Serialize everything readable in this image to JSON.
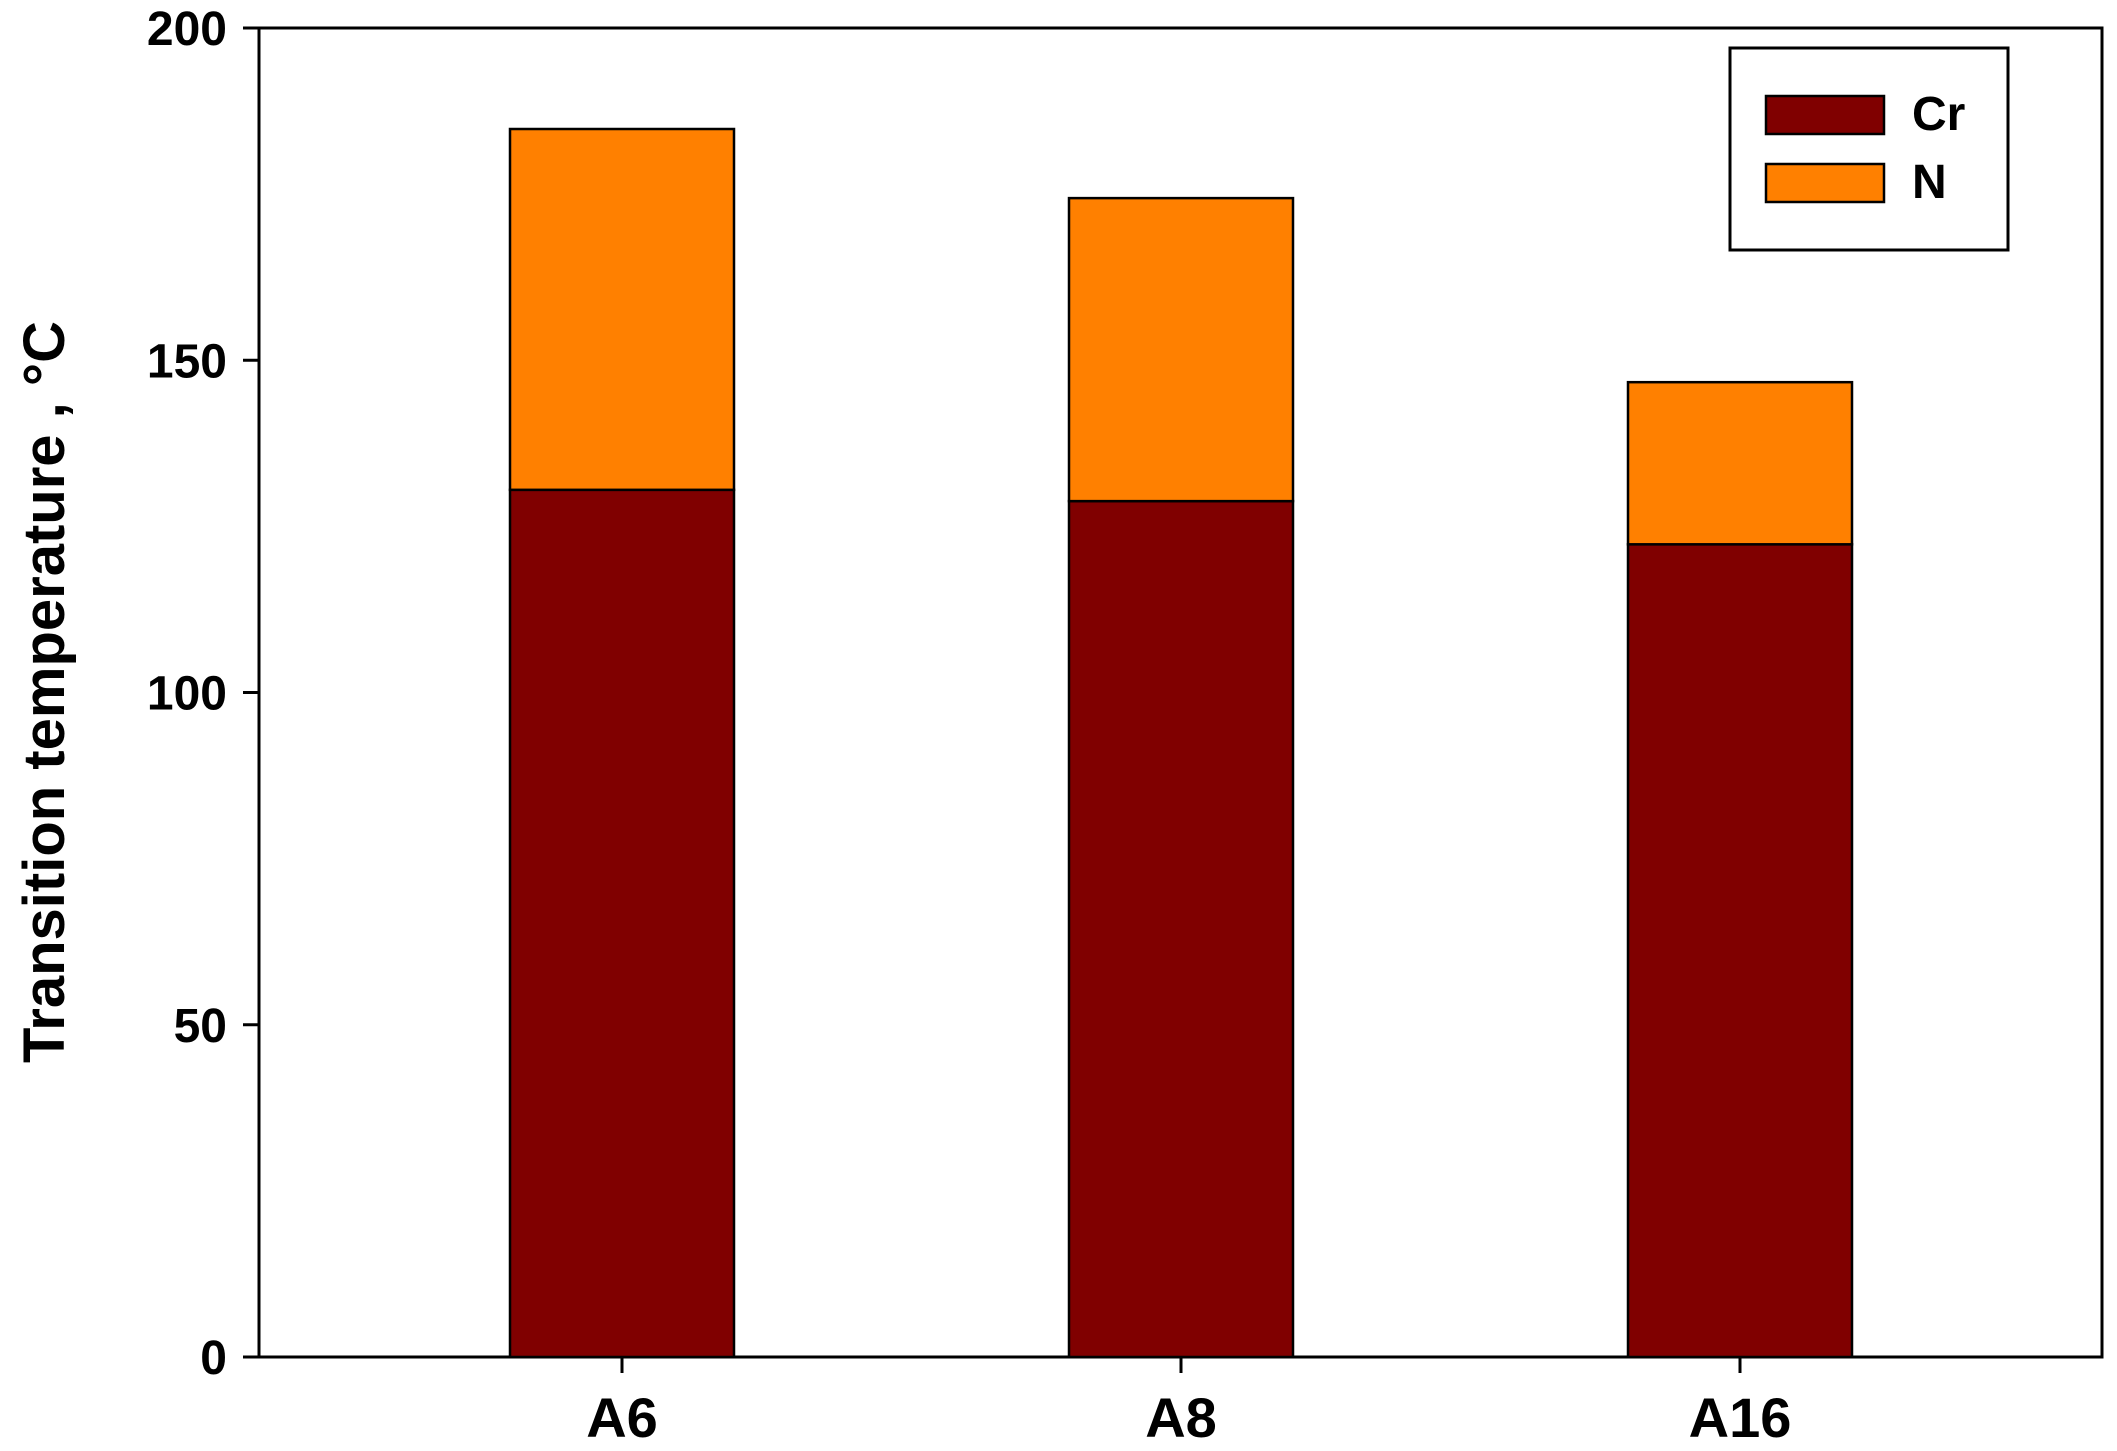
{
  "chart_data": {
    "type": "bar",
    "stacked": true,
    "categories": [
      "A6",
      "A8",
      "A16"
    ],
    "series": [
      {
        "name": "Cr",
        "values": [
          130.5,
          128.8,
          122.3
        ],
        "color": "#800000"
      },
      {
        "name": "N",
        "values": [
          54.3,
          45.6,
          24.4
        ],
        "color": "#ff8000"
      }
    ],
    "title": "",
    "xlabel": "",
    "ylabel": "Transition temperature , °C",
    "ylim": [
      0,
      200
    ],
    "yticks": [
      0,
      50,
      100,
      150,
      200
    ],
    "grid": false,
    "legend": "top-right"
  }
}
